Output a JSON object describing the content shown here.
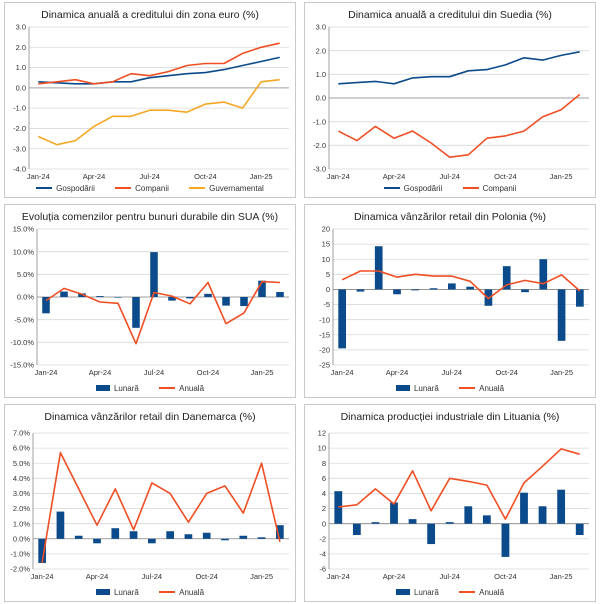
{
  "colors": {
    "navy": "#0B4A8B",
    "red": "#F04E23",
    "orange": "#F5A623",
    "grid": "#D9D9D9",
    "axis": "#888888"
  },
  "chart_data": [
    {
      "type": "line",
      "title": "Dinamica anuală a creditului din zona euro (%)",
      "categories": [
        "Jan-24",
        "Feb-24",
        "Mar-24",
        "Apr-24",
        "May-24",
        "Jun-24",
        "Jul-24",
        "Aug-24",
        "Sep-24",
        "Oct-24",
        "Nov-24",
        "Dec-24",
        "Jan-25",
        "Feb-25"
      ],
      "tick_labels": [
        "Jan-24",
        "Apr-24",
        "Jul-24",
        "Oct-24",
        "Jan-25"
      ],
      "ylim": [
        -4,
        3
      ],
      "ystep": 1,
      "ydecimals": 1,
      "ysuffix": "",
      "series": [
        {
          "name": "Gospodării",
          "color": "#0B4A8B",
          "values": [
            0.3,
            0.25,
            0.2,
            0.2,
            0.3,
            0.3,
            0.5,
            0.6,
            0.7,
            0.75,
            0.9,
            1.1,
            1.3,
            1.5
          ]
        },
        {
          "name": "Companii",
          "color": "#F04E23",
          "values": [
            0.2,
            0.3,
            0.4,
            0.2,
            0.3,
            0.7,
            0.6,
            0.8,
            1.1,
            1.2,
            1.2,
            1.7,
            2.0,
            2.2
          ]
        },
        {
          "name": "Guvernamental",
          "color": "#F5A623",
          "values": [
            -2.4,
            -2.8,
            -2.6,
            -1.9,
            -1.4,
            -1.4,
            -1.1,
            -1.1,
            -1.2,
            -0.8,
            -0.7,
            -1.0,
            0.3,
            0.4
          ]
        }
      ]
    },
    {
      "type": "line",
      "title": "Dinamica anuală a creditului din Suedia (%)",
      "categories": [
        "Jan-24",
        "Feb-24",
        "Mar-24",
        "Apr-24",
        "May-24",
        "Jun-24",
        "Jul-24",
        "Aug-24",
        "Sep-24",
        "Oct-24",
        "Nov-24",
        "Dec-24",
        "Jan-25",
        "Feb-25"
      ],
      "tick_labels": [
        "Jan-24",
        "Apr-24",
        "Jul-24",
        "Oct-24",
        "Jan-25"
      ],
      "ylim": [
        -3,
        3
      ],
      "ystep": 1,
      "ydecimals": 1,
      "ysuffix": "",
      "series": [
        {
          "name": "Gospodării",
          "color": "#0B4A8B",
          "values": [
            0.6,
            0.65,
            0.7,
            0.6,
            0.85,
            0.9,
            0.9,
            1.15,
            1.2,
            1.4,
            1.7,
            1.6,
            1.8,
            1.95
          ]
        },
        {
          "name": "Companii",
          "color": "#F04E23",
          "values": [
            -1.4,
            -1.8,
            -1.2,
            -1.7,
            -1.4,
            -1.9,
            -2.5,
            -2.4,
            -1.7,
            -1.6,
            -1.4,
            -0.8,
            -0.5,
            0.15
          ]
        }
      ]
    },
    {
      "type": "bar+line",
      "title": "Evoluția comenzilor pentru bunuri durabile din SUA (%)",
      "categories": [
        "Jan-24",
        "Feb-24",
        "Mar-24",
        "Apr-24",
        "May-24",
        "Jun-24",
        "Jul-24",
        "Aug-24",
        "Sep-24",
        "Oct-24",
        "Nov-24",
        "Dec-24",
        "Jan-25",
        "Feb-25"
      ],
      "tick_labels": [
        "Jan-24",
        "Apr-24",
        "Jul-24",
        "Oct-24",
        "Jan-25"
      ],
      "ylim": [
        -15,
        15
      ],
      "ystep": 5,
      "ydecimals": 1,
      "ysuffix": "%",
      "bars": {
        "name": "Lunară",
        "color": "#0B4A8B",
        "values": [
          -3.6,
          1.2,
          0.8,
          0.2,
          0.0,
          -6.8,
          9.9,
          -0.8,
          -0.3,
          0.7,
          -1.9,
          -2.0,
          3.6,
          1.1
        ]
      },
      "line": {
        "name": "Anuală",
        "color": "#F04E23",
        "values": [
          -0.8,
          1.9,
          0.6,
          -1.1,
          -1.4,
          -10.3,
          1.0,
          0.2,
          -1.5,
          3.2,
          -5.9,
          -3.5,
          3.4,
          3.2
        ]
      }
    },
    {
      "type": "bar+line",
      "title": "Dinamica vânzărilor retail din Polonia (%)",
      "categories": [
        "Jan-24",
        "Feb-24",
        "Mar-24",
        "Apr-24",
        "May-24",
        "Jun-24",
        "Jul-24",
        "Aug-24",
        "Sep-24",
        "Oct-24",
        "Nov-24",
        "Dec-24",
        "Jan-25",
        "Feb-25"
      ],
      "tick_labels": [
        "Jan-24",
        "Apr-24",
        "Jul-24",
        "Oct-24",
        "Jan-25"
      ],
      "ylim": [
        -25,
        20
      ],
      "ystep": 5,
      "ydecimals": 0,
      "ysuffix": "",
      "bars": {
        "name": "Lunară",
        "color": "#0B4A8B",
        "values": [
          -19.5,
          -0.7,
          14.3,
          -1.6,
          -0.3,
          0.4,
          2.0,
          0.9,
          -5.4,
          7.7,
          -0.9,
          10.0,
          -17.0,
          -5.7
        ]
      },
      "line": {
        "name": "Anuală",
        "color": "#F04E23",
        "values": [
          3.2,
          6.1,
          6.1,
          4.1,
          5.0,
          4.4,
          4.4,
          2.7,
          -3.0,
          1.5,
          3.0,
          1.9,
          4.8,
          -0.5
        ]
      }
    },
    {
      "type": "bar+line",
      "title": "Dinamica vânzărilor retail din Danemarca (%)",
      "categories": [
        "Jan-24",
        "Feb-24",
        "Mar-24",
        "Apr-24",
        "May-24",
        "Jun-24",
        "Jul-24",
        "Aug-24",
        "Sep-24",
        "Oct-24",
        "Nov-24",
        "Dec-24",
        "Jan-25",
        "Feb-25"
      ],
      "tick_labels": [
        "Jan-24",
        "Apr-24",
        "Jul-24",
        "Oct-24",
        "Jan-25"
      ],
      "ylim": [
        -2,
        7
      ],
      "ystep": 1,
      "ydecimals": 1,
      "ysuffix": "%",
      "bars": {
        "name": "Lunară",
        "color": "#0B4A8B",
        "values": [
          -1.6,
          1.8,
          0.2,
          -0.3,
          0.7,
          0.5,
          -0.3,
          0.5,
          0.3,
          0.4,
          -0.1,
          0.2,
          0.1,
          0.9
        ]
      },
      "line": {
        "name": "Anuală",
        "color": "#F04E23",
        "values": [
          -1.6,
          5.7,
          3.3,
          0.9,
          3.3,
          0.6,
          3.7,
          3.0,
          1.1,
          3.0,
          3.5,
          1.7,
          5.0,
          -0.2
        ]
      }
    },
    {
      "type": "bar+line",
      "title": "Dinamica producției industriale din Lituania (%)",
      "categories": [
        "Jan-24",
        "Feb-24",
        "Mar-24",
        "Apr-24",
        "May-24",
        "Jun-24",
        "Jul-24",
        "Aug-24",
        "Sep-24",
        "Oct-24",
        "Nov-24",
        "Dec-24",
        "Jan-25",
        "Feb-25"
      ],
      "tick_labels": [
        "Jan-24",
        "Apr-24",
        "Jul-24",
        "Oct-24",
        "Jan-25"
      ],
      "ylim": [
        -6,
        12
      ],
      "ystep": 2,
      "ydecimals": 0,
      "ysuffix": "",
      "bars": {
        "name": "Lunară",
        "color": "#0B4A8B",
        "values": [
          4.3,
          -1.5,
          0.2,
          2.8,
          0.6,
          -2.7,
          0.2,
          2.3,
          1.1,
          -4.4,
          4.1,
          2.3,
          4.5,
          -1.5
        ]
      },
      "line": {
        "name": "Anuală",
        "color": "#F04E23",
        "values": [
          2.2,
          2.5,
          4.6,
          2.6,
          7.0,
          1.7,
          6.0,
          5.6,
          5.1,
          0.6,
          5.4,
          7.6,
          9.9,
          9.2
        ]
      }
    }
  ]
}
